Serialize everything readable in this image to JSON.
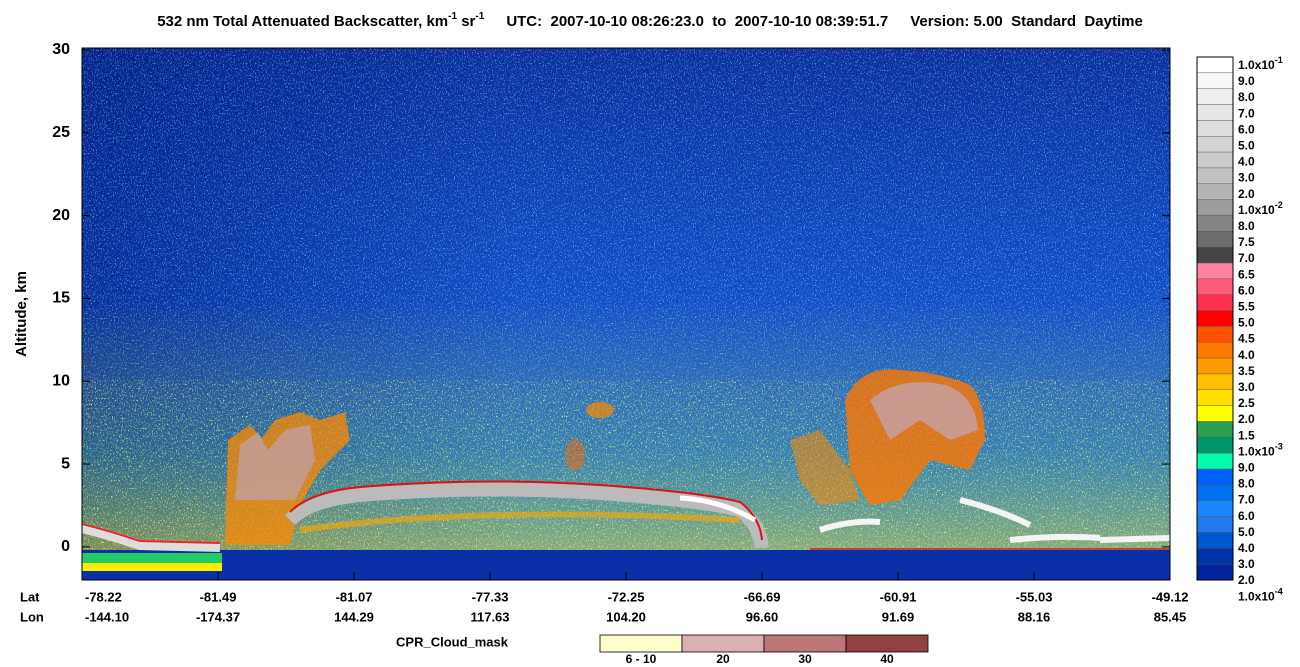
{
  "chart_data": {
    "type": "lidar-curtain",
    "title": {
      "text": "532 nm Total Attenuated Backscatter, km",
      "exp1": "-1",
      "unit2": " sr",
      "exp2": "-1"
    },
    "time_range": "UTC:  2007-10-10 08:26:23.0  to  2007-10-10 08:39:51.7",
    "version": "Version: 5.00  Standard  Daytime",
    "y_label": "Altitude, km",
    "ylim": [
      -2,
      30
    ],
    "yticks": [
      0,
      5,
      10,
      15,
      20,
      25,
      30
    ],
    "x_row_labels": [
      "Lat",
      "Lon"
    ],
    "x_ticks": [
      {
        "lat": "-78.22",
        "lon": "-144.10"
      },
      {
        "lat": "-81.49",
        "lon": "-174.37"
      },
      {
        "lat": "-81.07",
        "lon": "144.29"
      },
      {
        "lat": "-77.33",
        "lon": "117.63"
      },
      {
        "lat": "-72.25",
        "lon": "104.20"
      },
      {
        "lat": "-66.69",
        "lon": "96.60"
      },
      {
        "lat": "-60.91",
        "lon": "91.69"
      },
      {
        "lat": "-55.03",
        "lon": "88.16"
      },
      {
        "lat": "-49.12",
        "lon": "85.45"
      }
    ],
    "colorbar": {
      "labels": [
        {
          "text": "1.0x10",
          "sup": "-1"
        },
        {
          "text": "9.0"
        },
        {
          "text": "8.0"
        },
        {
          "text": "7.0"
        },
        {
          "text": "6.0"
        },
        {
          "text": "5.0"
        },
        {
          "text": "4.0"
        },
        {
          "text": "3.0"
        },
        {
          "text": "2.0"
        },
        {
          "text": "1.0x10",
          "sup": "-2"
        },
        {
          "text": "8.0"
        },
        {
          "text": "7.5"
        },
        {
          "text": "7.0"
        },
        {
          "text": "6.5"
        },
        {
          "text": "6.0"
        },
        {
          "text": "5.5"
        },
        {
          "text": "5.0"
        },
        {
          "text": "4.5"
        },
        {
          "text": "4.0"
        },
        {
          "text": "3.5"
        },
        {
          "text": "3.0"
        },
        {
          "text": "2.5"
        },
        {
          "text": "2.0"
        },
        {
          "text": "1.5"
        },
        {
          "text": "1.0x10",
          "sup": "-3"
        },
        {
          "text": "9.0"
        },
        {
          "text": "8.0"
        },
        {
          "text": "7.0"
        },
        {
          "text": "6.0"
        },
        {
          "text": "5.0"
        },
        {
          "text": "4.0"
        },
        {
          "text": "3.0"
        },
        {
          "text": "2.0"
        },
        {
          "text": "1.0x10",
          "sup": "-4"
        }
      ],
      "colors": [
        "#ffffff",
        "#f7f7f7",
        "#efefef",
        "#e6e6e6",
        "#dddddd",
        "#d4d4d4",
        "#cbcbcb",
        "#c2c2c2",
        "#b4b4b4",
        "#9c9c9c",
        "#858585",
        "#6c6c6c",
        "#444444",
        "#ff80a0",
        "#ff5a7c",
        "#ff3050",
        "#ff0000",
        "#ff5200",
        "#ff7800",
        "#ff9a00",
        "#ffc000",
        "#ffde00",
        "#ffff00",
        "#2aa050",
        "#00956a",
        "#00ffaa",
        "#0060ff",
        "#0072f0",
        "#1a86ff",
        "#2278ec",
        "#0058d0",
        "#0034a8",
        "#00229a"
      ]
    },
    "cpr_legend": {
      "label": "CPR_Cloud_mask",
      "items": [
        {
          "label": "6 - 10",
          "color": "#ffffcc"
        },
        {
          "label": "20",
          "color": "#dcb0b0"
        },
        {
          "label": "30",
          "color": "#bb7777"
        },
        {
          "label": "40",
          "color": "#914141"
        }
      ]
    }
  }
}
